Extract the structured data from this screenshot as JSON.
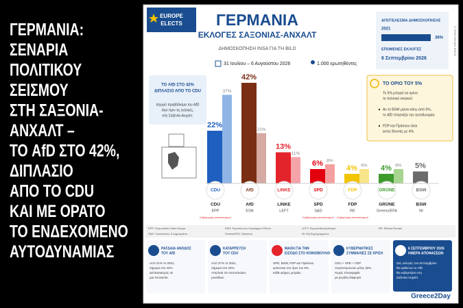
{
  "headline": {
    "lines": [
      "ΓΕΡΜΑΝΙΑ:",
      "ΣΕΝΑΡΙΑ",
      "ΠΟΛΙΤΙΚΟΥ",
      "ΣΕΙΣΜΟΥ",
      "ΣΤΗ ΣΑΞΟΝΙΑ-",
      "ΑΝΧΑΛΤ –"
    ],
    "highlight_lines": [
      "ΤΟ AfD ΣΤΟ 42%,",
      "ΔΙΠΛΑΣΙΟ",
      "ΑΠΟ ΤΟ CDU"
    ],
    "closing_lines": [
      "ΚΑΙ ΜΕ ΟΡΑΤΟ",
      "ΤΟ ΕΝΔΕΧΟΜΕΝΟ",
      "ΑΥΤΟΔΥΝΑΜΙΑΣ"
    ]
  },
  "header": {
    "logo": [
      "EUROPE",
      "ELECTS"
    ],
    "title": "ΓΕΡΜΑΝΙΑ",
    "subtitle": "ΕΚΛΟΓΕΣ ΣΑΞΟΝΙΑΣ-ΑΝΧΑΛΤ",
    "source": "ΔΗΜΟΣΚΟΠΗΣΗ INSA ΓΙΑ ΤΗ BILD",
    "dates": "31 Ιουλίου – 6 Αυγούστου 2026",
    "sample": "1.000 ερωτηθέντες",
    "credit": "© 2026 Europe Elects"
  },
  "side_box": {
    "heading": "ΑΠΟΤΕΛΕΣΜΑ ΔΗΜΟΣΚΟΠΗΣΗΣ",
    "year": "2021",
    "value": 36,
    "value_label": "36%",
    "next_heading": "ΕΠΟΜΕΝΕΣ ΕΚΛΟΓΕΣ",
    "next_date": "6 Σεπτεμβρίου 2026"
  },
  "callout_left": {
    "title_lines": [
      "ΤΟ AfD ΣΤΟ 42%",
      "ΔΙΠΛΑΣΙΟ ΑΠΟ ΤΟ CDU"
    ],
    "text_lines": [
      "Ισχυρό προβάδισμα του AfD",
      "λίγο πριν τις εκλογές,",
      "στη Σαξονία-Ανχαλτ."
    ]
  },
  "callout_right": {
    "title": "ΤΟ ΟΡΙΟ ΤΟΥ 5%",
    "intro_lines": [
      "Το 5% μπορεί να κρίνει",
      "το πολιτικό σκηνικό:"
    ],
    "bullets": [
      [
        "Αν το BSW μείνει κάτω από 5%,",
        "το AfD πλησιάζει την αυτοδυναμία."
      ],
      [
        "FDP και Πράσινοι είναι",
        "εκτός Βουλής με 4%."
      ]
    ]
  },
  "chart_data": {
    "type": "bar",
    "categories": [
      "CDU",
      "AfD",
      "LINKE",
      "SPD",
      "FDP",
      "GRÜNE",
      "BSW"
    ],
    "groups": [
      "EPP",
      "ESN",
      "LEFT",
      "S&D",
      "RE",
      "Greens/EFA",
      "NI"
    ],
    "notes": [
      "Κυβέρνηση συνασπισμού",
      null,
      null,
      "Κυβέρνηση συνασπισμού",
      "Κυβέρνηση συνασπισμού",
      null,
      null
    ],
    "series": [
      {
        "values": [
          22,
          42,
          13,
          6,
          4,
          4,
          5
        ],
        "value_labels": [
          "22%",
          "42%",
          "13%",
          "6%",
          "4%",
          "4%",
          "5%"
        ],
        "colors": [
          "#1f5fbf",
          "#7a2e14",
          "#e3242b",
          "#e3000f",
          "#f2c500",
          "#3d9a2b",
          "#6b6b6b"
        ]
      },
      {
        "values": [
          37,
          21,
          11,
          8,
          6,
          6,
          null
        ],
        "value_labels": [
          "37%",
          "21%",
          "11%",
          "8%",
          "6%",
          "6%",
          null
        ],
        "colors": [
          "#8fb5e6",
          "#d4aaa2",
          "#f4a3a8",
          "#f5a0a0",
          "#f8e48a",
          "#a8d690",
          "#cccccc"
        ]
      }
    ]
  },
  "legend_notes": [
    "EPP: Ευρωπαϊκό Λαϊκό Κόμμα",
    "ESN: Ευρώπη των Κυρίαρχων Εθνών",
    "LEFT: Ευρωπαϊκή Αριστερά",
    "RE: Renew Europe",
    "S&D: Σοσιαλιστές & Δημοκράτες",
    "Greens/EFA: Πράσινοι",
    "NI: Μη Εγγεγραμμένοι"
  ],
  "cards": [
    {
      "title_lines": [
        "ΡΑΓΔΑΙΑ ΑΝΟΔΟΣ",
        "ΤΟΥ AfD"
      ],
      "text_lines": [
        "Από 21% το 2021,",
        "σήμερα στο 42%.",
        "Διπλασιασμός σε",
        "μια πενταετία."
      ]
    },
    {
      "title_lines": [
        "ΚΑΤΑΡΡΕΥΣΗ",
        "ΤΟΥ CDU"
      ],
      "text_lines": [
        "Από 37% το 2021,",
        "σήμερα στο 22%.",
        "Απώλεια 15 ποσοστιαίων",
        "μονάδων."
      ]
    },
    {
      "title_lines": [
        "ΜΑΧΗ ΓΙΑ ΤΗΝ",
        "ΕΙΣΟΔΟ ΣΤΟ ΚΟΙΝΟΒΟΥΛΙΟ"
      ],
      "text_lines": [
        "SPD, BSW, FDP και Πράσινοι",
        "κρίνονται στο όριο του 5%.",
        "Κάθε ψήφος μετράει."
      ]
    },
    {
      "title_lines": [
        "ΚΥΒΕΡΝΗΤΙΚΕΣ",
        "ΣΥΜΜΑΧΙΕΣ ΣΕ ΚΡΙΣΗ"
      ],
      "text_lines": [
        "CDU + SPD + FDP",
        "συγκεντρώνουν μόλις 32%.",
        "Χωρίς πλειοψηφία",
        "με μεγάλη διαφορά."
      ]
    },
    {
      "title_lines": [
        "6 ΣΕΠΤΕΜΒΡΙΟΥ 2026",
        "ΗΜΕΡΑ ΑΠΟΦΑΣΕΩΝ"
      ],
      "text_lines": [
        "Στις εκλογές του Σεπτεμβρίου",
        "θα κριθεί αν το AfD",
        "θα κυβερνήσει στη",
        "Σαξονία-Ανχαλτ."
      ]
    }
  ],
  "brand": "Greece2Day"
}
